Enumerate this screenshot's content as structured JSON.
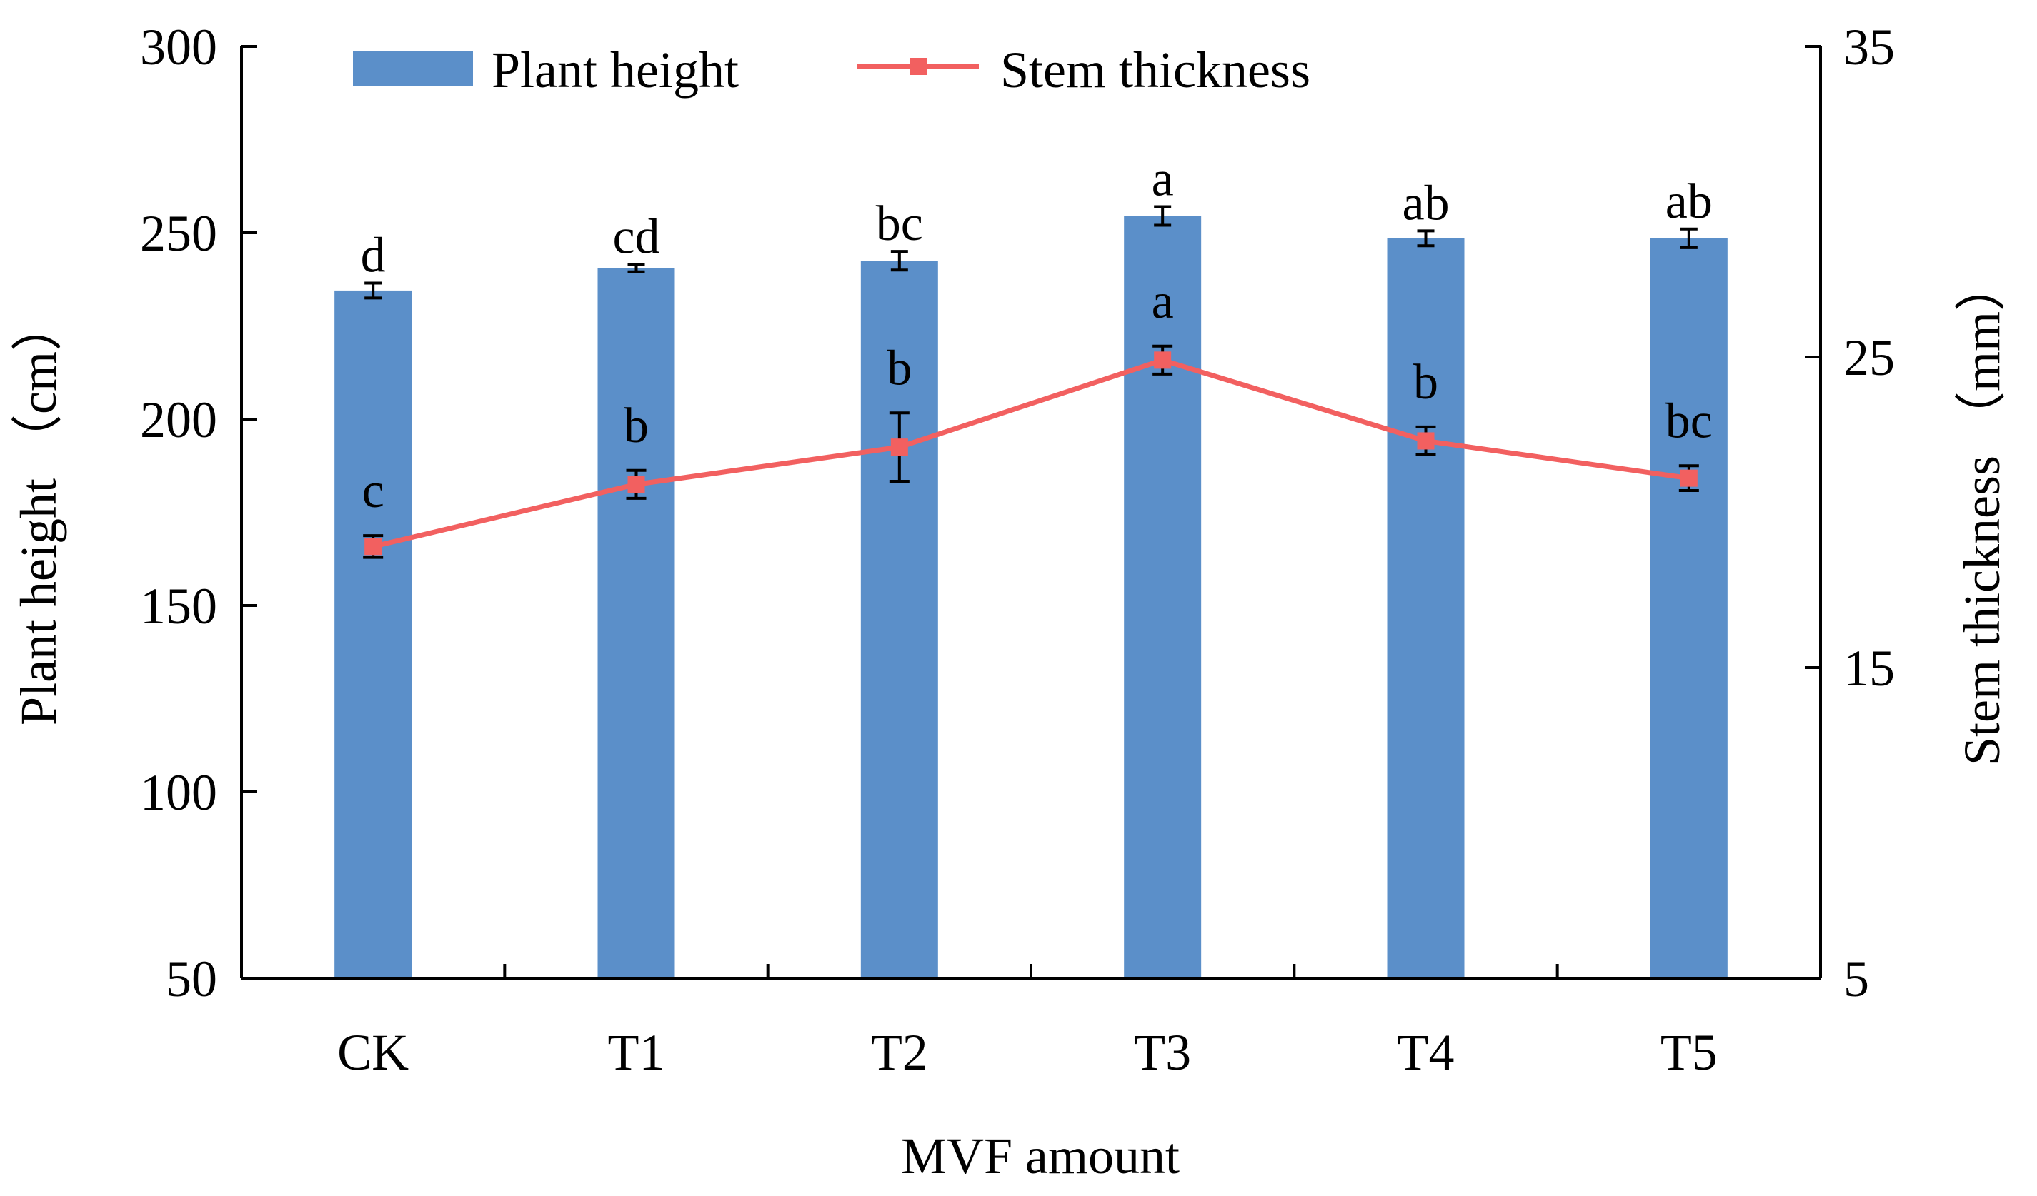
{
  "chart_data": {
    "type": "bar+line",
    "categories": [
      "CK",
      "T1",
      "T2",
      "T3",
      "T4",
      "T5"
    ],
    "xlabel": "MVF amount",
    "ylabel_left": "Plant height （cm）",
    "ylabel_right": "Stem thickness （mm）",
    "ylim_left": [
      50,
      300
    ],
    "yticks_left": [
      "50",
      "100",
      "150",
      "200",
      "250",
      "300"
    ],
    "ylim_right": [
      5,
      35
    ],
    "yticks_right": [
      "5",
      "15",
      "25",
      "35"
    ],
    "grid": false,
    "legend_position": "top",
    "series": [
      {
        "name": "Plant height",
        "type": "bar",
        "axis": "left",
        "color": "#5B8FC9",
        "values": [
          234.5,
          240.5,
          242.5,
          254.5,
          248.5,
          248.5
        ],
        "errors": [
          2,
          1,
          2.5,
          2.5,
          2,
          2.5
        ],
        "sig": [
          "d",
          "cd",
          "bc",
          "a",
          "ab",
          "ab"
        ]
      },
      {
        "name": "Stem thickness",
        "type": "line",
        "axis": "right",
        "color": "#F26060",
        "values": [
          18.9,
          20.9,
          22.1,
          24.9,
          22.3,
          21.1
        ],
        "errors": [
          0.35,
          0.45,
          1.1,
          0.45,
          0.45,
          0.4
        ],
        "sig": [
          "c",
          "b",
          "b",
          "a",
          "b",
          "bc"
        ]
      }
    ]
  }
}
